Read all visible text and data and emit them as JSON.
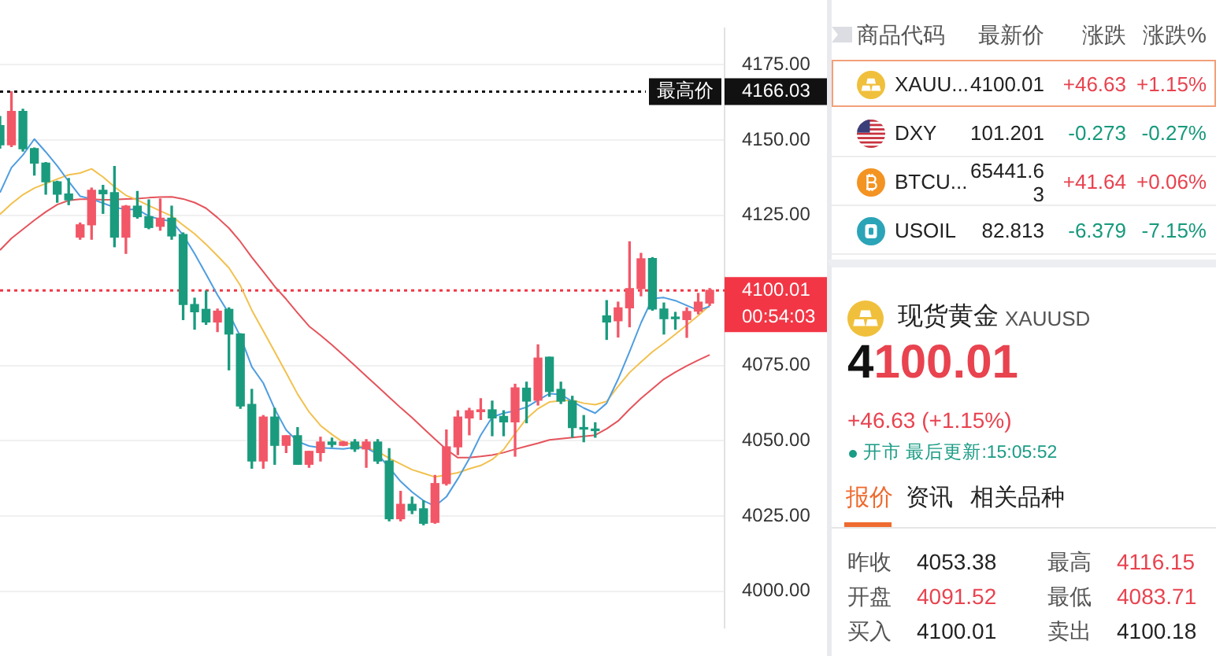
{
  "chart_data": [
    {
      "type": "candlestick",
      "tick_labels": "y",
      "grid": "y",
      "categories": [
        null,
        null,
        null,
        null,
        null,
        null,
        null,
        null,
        null,
        null,
        null,
        null,
        null,
        null,
        null,
        null,
        null,
        null,
        null,
        null,
        null,
        null,
        null,
        null,
        null,
        null,
        null,
        null,
        null,
        null,
        null,
        null,
        null,
        null,
        null,
        null,
        null,
        null,
        null,
        null,
        null,
        null,
        null,
        null,
        null,
        null,
        null,
        null,
        null,
        null,
        null,
        null,
        null,
        null,
        null,
        null,
        null,
        null,
        null,
        null,
        null,
        null,
        null
      ],
      "ohlc": [
        [
          4154.8,
          4157.8,
          4147.3,
          4148.4
        ],
        [
          4148.4,
          4166.03,
          4147.8,
          4159.5
        ],
        [
          4159.5,
          4160.2,
          4146.3,
          4147.1
        ],
        [
          4147.1,
          4147.3,
          4138.3,
          4142.3
        ],
        [
          4142.3,
          4142.5,
          4132.0,
          4136.1
        ],
        [
          4136.1,
          4136.3,
          4129.3,
          4132.0
        ],
        [
          4132.0,
          4137.2,
          4128.5,
          4130.1
        ],
        [
          4117.7,
          4122.4,
          4117.0,
          4121.8
        ],
        [
          4121.8,
          4134.0,
          4117.0,
          4133.3
        ],
        [
          4133.3,
          4134.9,
          4125.6,
          4132.1
        ],
        [
          4132.5,
          4141.2,
          4114.5,
          4117.7
        ],
        [
          4117.7,
          4128.2,
          4112.3,
          4128.0
        ],
        [
          4128.0,
          4132.9,
          4124.0,
          4124.5
        ],
        [
          4124.5,
          4130.1,
          4120.5,
          4120.9
        ],
        [
          4121.3,
          4130.4,
          4120.0,
          4124.0
        ],
        [
          4124.0,
          4128.0,
          4117.0,
          4118.1
        ],
        [
          4118.6,
          4119.1,
          4090.3,
          4095.3
        ],
        [
          4095.3,
          4097.4,
          4087.1,
          4092.9
        ],
        [
          4093.7,
          4099.8,
          4088.7,
          4089.5
        ],
        [
          4089.5,
          4093.8,
          4086.3,
          4093.1
        ],
        [
          4093.7,
          4094.2,
          4073.6,
          4085.5
        ],
        [
          4085.5,
          4085.6,
          4060.8,
          4061.6
        ],
        [
          4062.1,
          4067.1,
          4040.9,
          4043.3
        ],
        [
          4043.3,
          4058.4,
          4040.9,
          4057.9
        ],
        [
          4057.9,
          4060.8,
          4042.2,
          4048.5
        ],
        [
          4048.5,
          4051.7,
          4046.1,
          4051.7
        ],
        [
          4051.7,
          4054.4,
          4042.2,
          4042.2
        ],
        [
          4042.2,
          4046.5,
          4041.2,
          4046.5
        ],
        [
          4046.1,
          4051.2,
          4043.3,
          4049.6
        ],
        [
          4049.6,
          4050.9,
          4048.0,
          4048.8
        ],
        [
          4048.5,
          4049.8,
          4048.4,
          4049.6
        ],
        [
          4049.6,
          4050.4,
          4046.5,
          4047.3
        ],
        [
          4047.3,
          4050.4,
          4041.2,
          4049.6
        ],
        [
          4049.6,
          4050.4,
          4042.5,
          4043.3
        ],
        [
          4043.3,
          4047.4,
          4023.4,
          4024.1
        ],
        [
          4024.1,
          4033.2,
          4023.4,
          4028.9
        ],
        [
          4028.9,
          4031.3,
          4025.8,
          4026.9
        ],
        [
          4027.4,
          4030.1,
          4022.1,
          4022.6
        ],
        [
          4022.9,
          4038.5,
          4022.6,
          4035.8
        ],
        [
          4035.8,
          4053.6,
          4035.3,
          4048.0
        ],
        [
          4048.0,
          4060.0,
          4045.4,
          4057.9
        ],
        [
          4057.6,
          4060.8,
          4052.0,
          4060.0
        ],
        [
          4059.7,
          4064.0,
          4057.1,
          4060.3
        ],
        [
          4060.3,
          4063.2,
          4051.7,
          4057.6
        ],
        [
          4058.1,
          4060.0,
          4051.7,
          4056.3
        ],
        [
          4056.3,
          4068.8,
          4044.9,
          4067.6
        ],
        [
          4067.5,
          4069.5,
          4056.0,
          4063.2
        ],
        [
          4063.5,
          4081.9,
          4061.9,
          4077.5
        ],
        [
          4077.8,
          4077.8,
          4064.8,
          4066.4
        ],
        [
          4067.1,
          4069.5,
          4062.4,
          4063.2
        ],
        [
          4063.2,
          4064.8,
          4051.2,
          4054.4
        ],
        [
          4054.4,
          4058.4,
          4049.7,
          4053.9
        ],
        [
          4053.6,
          4056.0,
          4051.2,
          4053.4
        ],
        [
          4091.52,
          4096.6,
          4083.71,
          4089.5
        ],
        [
          4089.9,
          4096.1,
          4084.5,
          4094.2
        ],
        [
          4094.2,
          4116.15,
          4087.9,
          4100.6
        ],
        [
          4100.6,
          4112.3,
          4098.2,
          4110.5
        ],
        [
          4110.6,
          4110.9,
          4093.4,
          4093.8
        ],
        [
          4093.8,
          4095.8,
          4085.5,
          4090.6
        ],
        [
          4091.0,
          4092.7,
          4087.1,
          4090.6
        ],
        [
          4090.3,
          4094.2,
          4084.4,
          4093.0
        ],
        [
          4093.1,
          4099.0,
          4092.2,
          4096.1
        ],
        [
          4095.8,
          4100.6,
          4095.0,
          4100.01
        ]
      ],
      "colors": [
        "#1a9b7e",
        "#f25767",
        "#1a9b7e",
        "#1a9b7e",
        "#1a9b7e",
        "#1a9b7e",
        "#1a9b7e",
        "#f25767",
        "#f25767",
        "#1a9b7e",
        "#1a9b7e",
        "#f25767",
        "#1a9b7e",
        "#1a9b7e",
        "#f25767",
        "#1a9b7e",
        "#1a9b7e",
        "#1a9b7e",
        "#1a9b7e",
        "#f25767",
        "#1a9b7e",
        "#1a9b7e",
        "#1a9b7e",
        "#f25767",
        "#1a9b7e",
        "#f25767",
        "#1a9b7e",
        "#f25767",
        "#f25767",
        "#1a9b7e",
        "#f25767",
        "#1a9b7e",
        "#f25767",
        "#1a9b7e",
        "#1a9b7e",
        "#f25767",
        "#1a9b7e",
        "#1a9b7e",
        "#f25767",
        "#f25767",
        "#f25767",
        "#f25767",
        "#f25767",
        "#1a9b7e",
        "#1a9b7e",
        "#f25767",
        "#1a9b7e",
        "#f25767",
        "#1a9b7e",
        "#1a9b7e",
        "#1a9b7e",
        "#1a9b7e",
        "#1a9b7e",
        "#1a9b7e",
        "#f25767",
        "#f25767",
        "#f25767",
        "#1a9b7e",
        "#1a9b7e",
        "#1a9b7e",
        "#f25767",
        "#f25767",
        "#f25767"
      ],
      "series": [
        {
          "type": "line",
          "color": "#4e9de0",
          "values": [
            4132.5,
            4140.8,
            4145.0,
            4150.3,
            4146.0,
            4141.4,
            4136.2,
            4131.3,
            4130.4,
            4129.0,
            4127.6,
            4126.9,
            4126.9,
            4124.7,
            4123.6,
            4123.0,
            4118.4,
            4112.2,
            4105.4,
            4098.5,
            4092.3,
            4084.7,
            4074.6,
            4069.2,
            4060.6,
            4053.6,
            4049.8,
            4048.3,
            4047.7,
            4047.5,
            4047.3,
            4047.8,
            4047.6,
            4045.6,
            4041.1,
            4036.5,
            4033.0,
            4030.1,
            4028.3,
            4031.4,
            4037.4,
            4044.1,
            4051.9,
            4057.9,
            4059.2,
            4060.0,
            4061.2,
            4063.5,
            4065.7,
            4065.4,
            4063.1,
            4060.9,
            4059.2,
            4062.5,
            4070.5,
            4079.6,
            4089.2,
            4097.3,
            4097.6,
            4096.6,
            4095.0,
            4093.4,
            4094.7
          ]
        },
        {
          "type": "line",
          "color": "#f2c14e",
          "values": [
            4125.3,
            4128.8,
            4131.8,
            4134.0,
            4135.5,
            4137.0,
            4138.4,
            4139.0,
            4140.4,
            4137.7,
            4134.4,
            4131.6,
            4130.0,
            4128.2,
            4126.4,
            4124.7,
            4121.7,
            4118.8,
            4115.3,
            4111.5,
            4107.5,
            4101.6,
            4093.4,
            4086.5,
            4079.6,
            4072.6,
            4065.5,
            4059.6,
            4055.1,
            4052.1,
            4049.5,
            4048.6,
            4047.7,
            4046.5,
            4044.2,
            4042.3,
            4040.4,
            4039.2,
            4038.0,
            4038.7,
            4039.4,
            4040.7,
            4041.8,
            4043.8,
            4047.1,
            4052.4,
            4057.4,
            4060.7,
            4062.9,
            4063.3,
            4063.5,
            4062.5,
            4062.0,
            4063.1,
            4068.1,
            4072.7,
            4076.2,
            4079.6,
            4082.4,
            4085.4,
            4088.5,
            4091.6,
            4095.0
          ]
        },
        {
          "type": "line",
          "color": "#e5545c",
          "values": [
            4113.4,
            4117.3,
            4120.3,
            4123.3,
            4126.1,
            4128.5,
            4129.9,
            4130.3,
            4130.3,
            4130.1,
            4130.2,
            4130.4,
            4130.5,
            4130.8,
            4131.0,
            4131.1,
            4130.4,
            4129.2,
            4127.3,
            4124.2,
            4120.7,
            4116.2,
            4111.0,
            4106.2,
            4101.3,
            4097.1,
            4092.5,
            4088.1,
            4085.1,
            4081.9,
            4078.5,
            4075.0,
            4071.5,
            4068.0,
            4064.5,
            4061.0,
            4057.7,
            4054.1,
            4050.6,
            4047.1,
            4044.4,
            4044.4,
            4044.8,
            4045.3,
            4046.1,
            4047.2,
            4048.2,
            4049.2,
            4050.3,
            4050.7,
            4051.1,
            4051.5,
            4051.9,
            4054.0,
            4056.6,
            4060.5,
            4064.1,
            4067.3,
            4070.5,
            4072.8,
            4074.9,
            4076.8,
            4078.6
          ]
        }
      ],
      "ylim": [
        3988,
        4187
      ],
      "yticks": [
        {
          "value": 4000,
          "label": "4000.00"
        },
        {
          "value": 4025,
          "label": "4025.00"
        },
        {
          "value": 4050,
          "label": "4050.00"
        },
        {
          "value": 4075,
          "label": "4075.00"
        },
        {
          "value": 4125,
          "label": "4125.00"
        },
        {
          "value": 4150,
          "label": "4150.00"
        },
        {
          "value": 4175,
          "label": "4175.00"
        }
      ],
      "ref_lines": [
        {
          "axis": "y",
          "value": 4166.03,
          "label": "最高价",
          "color": "#111111",
          "line_style": "dotted"
        },
        {
          "axis": "y",
          "value": 4100.01,
          "color": "#f23645",
          "line_style": "dotted"
        }
      ],
      "annotations": [
        "4166.03",
        "4100.01",
        "00:54:03"
      ]
    },
    {
      "type": "other",
      "annotations": [
        "商品代码",
        "最新价",
        "涨跌",
        "涨跌%",
        "XAUU...",
        "4100.01",
        "+46.63",
        "+1.15%",
        "DXY",
        "101.201",
        "-0.273",
        "-0.27%",
        "BTCU...",
        "65441.63",
        "+41.64",
        "+0.06%",
        "USOIL",
        "82.813",
        "-6.379",
        "-7.15%"
      ]
    },
    {
      "type": "other",
      "title": "现货黄金",
      "subtitle": "XAUUSD",
      "annotations": [
        "4100.01",
        "+46.63 (+1.15%)",
        "开市 最后更新:15:05:52",
        "报价",
        "资讯",
        "相关品种",
        "昨收",
        "4053.38",
        "最高",
        "4116.15",
        "开盘",
        "4091.52",
        "最低",
        "4083.71",
        "买入",
        "4100.01",
        "卖出",
        "4100.18"
      ]
    }
  ]
}
